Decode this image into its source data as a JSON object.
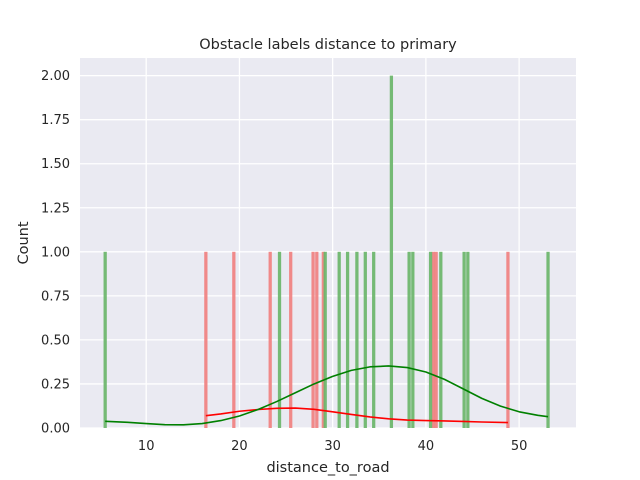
{
  "chart_data": {
    "type": "bar",
    "subtype": "histogram-with-kde",
    "title": "Obstacle labels distance to primary",
    "xlabel": "distance_to_road",
    "ylabel": "Count",
    "xlim": [
      2.9,
      56.1
    ],
    "ylim": [
      0,
      2.1
    ],
    "xticks": [
      10,
      20,
      30,
      40,
      50
    ],
    "yticks": [
      0.0,
      0.25,
      0.5,
      0.75,
      1.0,
      1.25,
      1.5,
      1.75,
      2.0
    ],
    "ytick_labels": [
      "0.00",
      "0.25",
      "0.50",
      "0.75",
      "1.00",
      "1.25",
      "1.50",
      "1.75",
      "2.00"
    ],
    "grid": true,
    "background": "#eaeaf2",
    "bin_width": 0.35,
    "series": [
      {
        "color": "#ff0000",
        "bar_color": "#f08080",
        "bars": [
          {
            "x": 16.4,
            "count": 1
          },
          {
            "x": 19.4,
            "count": 1
          },
          {
            "x": 23.3,
            "count": 1
          },
          {
            "x": 25.5,
            "count": 1
          },
          {
            "x": 27.9,
            "count": 1
          },
          {
            "x": 28.3,
            "count": 1
          },
          {
            "x": 29.0,
            "count": 1
          },
          {
            "x": 40.8,
            "count": 1
          },
          {
            "x": 41.1,
            "count": 1
          },
          {
            "x": 48.8,
            "count": 1
          }
        ],
        "kde": [
          [
            16.4,
            0.07
          ],
          [
            18.0,
            0.08
          ],
          [
            20.0,
            0.095
          ],
          [
            22.0,
            0.105
          ],
          [
            24.0,
            0.112
          ],
          [
            26.0,
            0.113
          ],
          [
            28.0,
            0.106
          ],
          [
            30.0,
            0.092
          ],
          [
            32.0,
            0.077
          ],
          [
            34.0,
            0.063
          ],
          [
            36.0,
            0.052
          ],
          [
            38.0,
            0.045
          ],
          [
            40.0,
            0.042
          ],
          [
            42.0,
            0.04
          ],
          [
            44.0,
            0.037
          ],
          [
            46.0,
            0.034
          ],
          [
            48.8,
            0.031
          ]
        ]
      },
      {
        "color": "#008000",
        "bar_color": "#6ab56a",
        "bars": [
          {
            "x": 5.6,
            "count": 1
          },
          {
            "x": 24.3,
            "count": 1
          },
          {
            "x": 29.2,
            "count": 1
          },
          {
            "x": 30.7,
            "count": 1
          },
          {
            "x": 31.6,
            "count": 1
          },
          {
            "x": 32.6,
            "count": 1
          },
          {
            "x": 33.5,
            "count": 1
          },
          {
            "x": 34.4,
            "count": 1
          },
          {
            "x": 36.3,
            "count": 2
          },
          {
            "x": 38.2,
            "count": 1
          },
          {
            "x": 38.6,
            "count": 1
          },
          {
            "x": 40.5,
            "count": 1
          },
          {
            "x": 41.6,
            "count": 1
          },
          {
            "x": 44.1,
            "count": 1
          },
          {
            "x": 44.5,
            "count": 1
          },
          {
            "x": 53.1,
            "count": 1
          }
        ],
        "kde": [
          [
            5.6,
            0.038
          ],
          [
            8.0,
            0.032
          ],
          [
            10.0,
            0.025
          ],
          [
            12.0,
            0.019
          ],
          [
            14.0,
            0.018
          ],
          [
            16.0,
            0.025
          ],
          [
            18.0,
            0.042
          ],
          [
            20.0,
            0.068
          ],
          [
            22.0,
            0.105
          ],
          [
            24.0,
            0.15
          ],
          [
            26.0,
            0.2
          ],
          [
            28.0,
            0.25
          ],
          [
            30.0,
            0.293
          ],
          [
            32.0,
            0.327
          ],
          [
            34.0,
            0.347
          ],
          [
            36.0,
            0.352
          ],
          [
            38.0,
            0.343
          ],
          [
            40.0,
            0.318
          ],
          [
            42.0,
            0.276
          ],
          [
            44.0,
            0.222
          ],
          [
            46.0,
            0.168
          ],
          [
            48.0,
            0.124
          ],
          [
            50.0,
            0.092
          ],
          [
            52.0,
            0.072
          ],
          [
            53.1,
            0.064
          ]
        ]
      }
    ]
  }
}
